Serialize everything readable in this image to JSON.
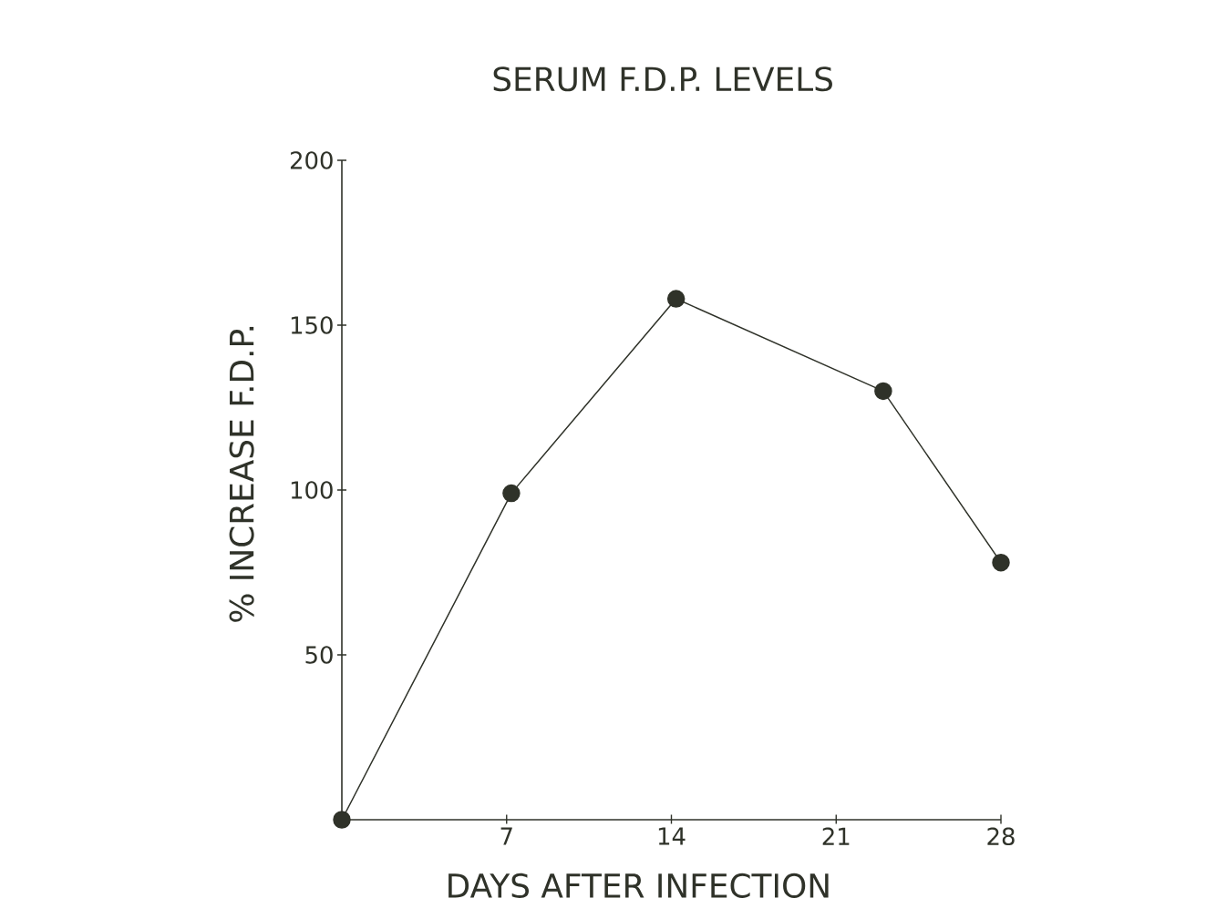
{
  "chart_data": {
    "type": "line",
    "title": "SERUM F.D.P. LEVELS",
    "xlabel": "DAYS AFTER INFECTION",
    "ylabel": "% INCREASE F.D.P.",
    "x": [
      0,
      7.2,
      14.2,
      23,
      28
    ],
    "series": [
      {
        "color": "#2f3229",
        "values": [
          0,
          99,
          158,
          130,
          78
        ]
      }
    ],
    "xlim": [
      0,
      28
    ],
    "xticks": [
      7,
      14,
      21,
      28
    ],
    "ylim": [
      0,
      200
    ],
    "yticks": [
      50,
      100,
      150,
      200
    ],
    "marker": "circle",
    "line_style": "solid"
  }
}
